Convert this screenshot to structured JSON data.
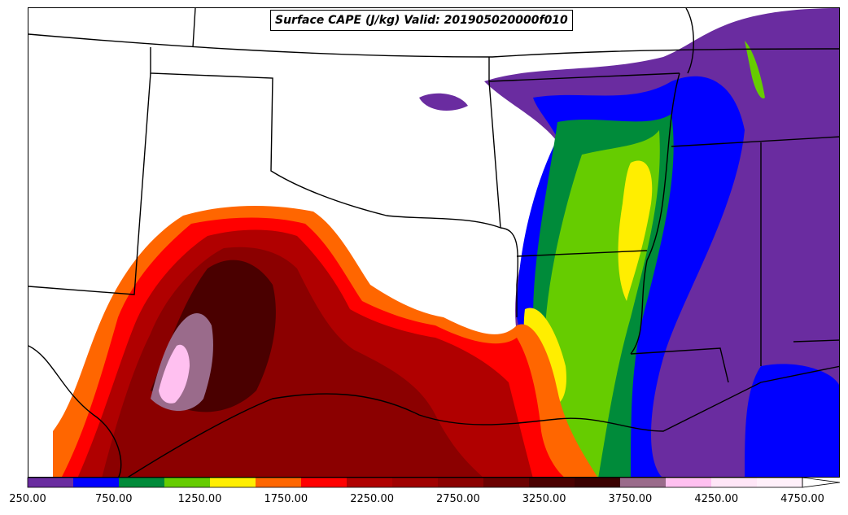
{
  "title": "Surface CAPE (J/kg) Valid: 201905020000f010",
  "colorbar": {
    "unit": "J/kg",
    "levels": [
      250,
      500,
      750,
      1000,
      1250,
      1500,
      1750,
      2000,
      2250,
      2500,
      2750,
      3000,
      3250,
      3500,
      3750,
      4000,
      4250,
      4500,
      4750
    ],
    "colors": [
      "#6a2ca0",
      "#0000ff",
      "#008b3a",
      "#66cc00",
      "#ffee00",
      "#ff6600",
      "#ff0000",
      "#b00000",
      "#a00000",
      "#8b0000",
      "#6b0000",
      "#4a0000",
      "#3a0000",
      "#9a6b8b",
      "#ffc0f0",
      "#ffe6f7",
      "#fff0fa",
      "#ffffff"
    ],
    "extend": "max",
    "tick_labels": [
      "250.00",
      "750.00",
      "1250.00",
      "1750.00",
      "2250.00",
      "2750.00",
      "3250.00",
      "3750.00",
      "4250.00",
      "4750.00"
    ]
  },
  "map": {
    "projection": "lambert-conformal",
    "region": "south-central-us-gulf",
    "boundary_color": "#000000"
  }
}
